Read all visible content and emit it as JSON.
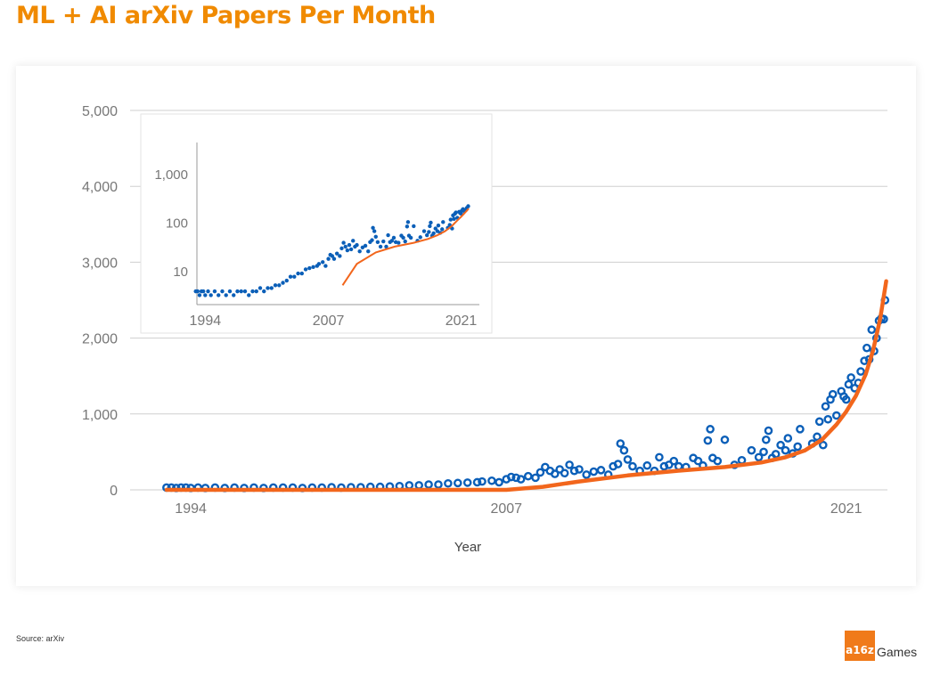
{
  "title": "ML + AI arXiv Papers Per Month",
  "source": "Source: arXiv",
  "brand": {
    "mark": "a16z",
    "word": "Games"
  },
  "colors": {
    "title": "#f08a00",
    "points": "#0b5fb8",
    "trend": "#f2661c",
    "grid": "#cfcfcf",
    "axis_text": "#777777"
  },
  "chart_data": [
    {
      "type": "scatter",
      "xlabel": "Year",
      "ylabel": "",
      "xlim": [
        1991.5,
        2022.7
      ],
      "ylim": [
        0,
        5000
      ],
      "xticks": [
        {
          "value": 1994,
          "label": "1994"
        },
        {
          "value": 2007,
          "label": "2007"
        },
        {
          "value": 2021,
          "label": "2021"
        }
      ],
      "yticks": [
        {
          "value": 0,
          "label": "0"
        },
        {
          "value": 1000,
          "label": "1,000"
        },
        {
          "value": 2000,
          "label": "2,000"
        },
        {
          "value": 3000,
          "label": "3,000"
        },
        {
          "value": 4000,
          "label": "4,000"
        },
        {
          "value": 5000,
          "label": "5,000"
        }
      ],
      "grid": true,
      "points": [
        [
          1993.0,
          30
        ],
        [
          1993.2,
          30
        ],
        [
          1993.4,
          25
        ],
        [
          1993.6,
          30
        ],
        [
          1993.8,
          30
        ],
        [
          1994.0,
          25
        ],
        [
          1994.3,
          30
        ],
        [
          1994.6,
          25
        ],
        [
          1995.0,
          30
        ],
        [
          1995.4,
          25
        ],
        [
          1995.8,
          30
        ],
        [
          1996.2,
          25
        ],
        [
          1996.6,
          30
        ],
        [
          1997.0,
          25
        ],
        [
          1997.4,
          30
        ],
        [
          1997.8,
          30
        ],
        [
          1998.2,
          30
        ],
        [
          1998.6,
          25
        ],
        [
          1999.0,
          30
        ],
        [
          1999.4,
          30
        ],
        [
          1999.8,
          35
        ],
        [
          2000.2,
          30
        ],
        [
          2000.6,
          35
        ],
        [
          2001.0,
          35
        ],
        [
          2001.4,
          40
        ],
        [
          2001.8,
          40
        ],
        [
          2002.2,
          45
        ],
        [
          2002.6,
          50
        ],
        [
          2003.0,
          60
        ],
        [
          2003.4,
          60
        ],
        [
          2003.8,
          70
        ],
        [
          2004.2,
          70
        ],
        [
          2004.6,
          85
        ],
        [
          2005.0,
          90
        ],
        [
          2005.4,
          95
        ],
        [
          2005.8,
          100
        ],
        [
          2006.0,
          110
        ],
        [
          2006.4,
          120
        ],
        [
          2006.7,
          100
        ],
        [
          2007.0,
          140
        ],
        [
          2007.2,
          170
        ],
        [
          2007.4,
          160
        ],
        [
          2007.6,
          140
        ],
        [
          2007.9,
          180
        ],
        [
          2008.2,
          160
        ],
        [
          2008.4,
          230
        ],
        [
          2008.6,
          300
        ],
        [
          2008.8,
          250
        ],
        [
          2009.0,
          210
        ],
        [
          2009.2,
          270
        ],
        [
          2009.4,
          220
        ],
        [
          2009.6,
          330
        ],
        [
          2009.8,
          250
        ],
        [
          2010.0,
          270
        ],
        [
          2010.3,
          200
        ],
        [
          2010.6,
          240
        ],
        [
          2010.9,
          260
        ],
        [
          2011.2,
          200
        ],
        [
          2011.4,
          310
        ],
        [
          2011.6,
          340
        ],
        [
          2011.7,
          610
        ],
        [
          2011.85,
          520
        ],
        [
          2012.0,
          400
        ],
        [
          2012.2,
          310
        ],
        [
          2012.5,
          250
        ],
        [
          2012.8,
          320
        ],
        [
          2013.1,
          250
        ],
        [
          2013.3,
          430
        ],
        [
          2013.5,
          310
        ],
        [
          2013.7,
          330
        ],
        [
          2013.9,
          380
        ],
        [
          2014.1,
          310
        ],
        [
          2014.4,
          300
        ],
        [
          2014.7,
          420
        ],
        [
          2014.9,
          380
        ],
        [
          2015.1,
          320
        ],
        [
          2015.3,
          650
        ],
        [
          2015.4,
          800
        ],
        [
          2015.5,
          420
        ],
        [
          2015.7,
          380
        ],
        [
          2016.0,
          660
        ],
        [
          2016.4,
          330
        ],
        [
          2016.7,
          390
        ],
        [
          2017.1,
          520
        ],
        [
          2017.4,
          430
        ],
        [
          2017.6,
          500
        ],
        [
          2017.7,
          660
        ],
        [
          2017.8,
          780
        ],
        [
          2017.95,
          420
        ],
        [
          2018.1,
          470
        ],
        [
          2018.3,
          590
        ],
        [
          2018.5,
          520
        ],
        [
          2018.6,
          680
        ],
        [
          2018.8,
          480
        ],
        [
          2019.0,
          570
        ],
        [
          2019.1,
          800
        ],
        [
          2019.6,
          610
        ],
        [
          2019.8,
          700
        ],
        [
          2019.9,
          900
        ],
        [
          2020.05,
          590
        ],
        [
          2020.15,
          1100
        ],
        [
          2020.25,
          930
        ],
        [
          2020.35,
          1190
        ],
        [
          2020.45,
          1260
        ],
        [
          2020.6,
          980
        ],
        [
          2020.8,
          1300
        ],
        [
          2020.9,
          1230
        ],
        [
          2021.0,
          1190
        ],
        [
          2021.1,
          1390
        ],
        [
          2021.2,
          1480
        ],
        [
          2021.35,
          1340
        ],
        [
          2021.5,
          1410
        ],
        [
          2021.6,
          1560
        ],
        [
          2021.75,
          1700
        ],
        [
          2021.85,
          1870
        ],
        [
          2021.95,
          1720
        ],
        [
          2022.05,
          2110
        ],
        [
          2022.15,
          1830
        ],
        [
          2022.25,
          2000
        ],
        [
          2022.35,
          2230
        ],
        [
          2022.45,
          2260
        ],
        [
          2022.55,
          2250
        ],
        [
          2022.6,
          2500
        ]
      ],
      "trend": [
        [
          1993.0,
          0
        ],
        [
          2007.0,
          0
        ],
        [
          2008.5,
          40
        ],
        [
          2010.0,
          110
        ],
        [
          2012.0,
          190
        ],
        [
          2014.0,
          250
        ],
        [
          2016.0,
          300
        ],
        [
          2017.5,
          360
        ],
        [
          2018.5,
          430
        ],
        [
          2019.3,
          520
        ],
        [
          2020.0,
          660
        ],
        [
          2020.6,
          860
        ],
        [
          2021.0,
          1030
        ],
        [
          2021.4,
          1240
        ],
        [
          2021.8,
          1520
        ],
        [
          2022.1,
          1830
        ],
        [
          2022.4,
          2250
        ],
        [
          2022.65,
          2750
        ]
      ]
    },
    {
      "type": "scatter",
      "scale": "log",
      "xlim": [
        1993.5,
        2021.8
      ],
      "ylim": [
        2,
        4000
      ],
      "xticks": [
        {
          "value": 1994,
          "label": "1994"
        },
        {
          "value": 2007,
          "label": "2007"
        },
        {
          "value": 2021,
          "label": "2021"
        }
      ],
      "yticks": [
        {
          "value": 10,
          "label": "10"
        },
        {
          "value": 100,
          "label": "100"
        },
        {
          "value": 1000,
          "label": "1,000"
        }
      ]
    }
  ]
}
